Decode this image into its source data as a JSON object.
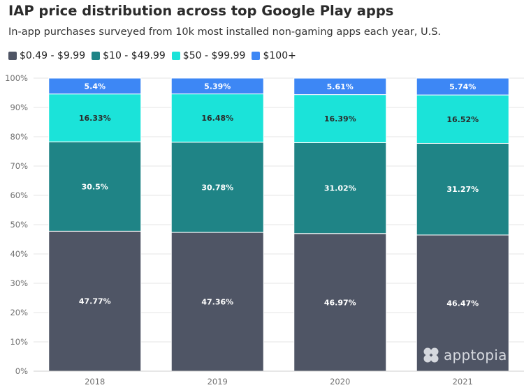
{
  "title": "IAP price distribution across top Google Play apps",
  "subtitle": "In-app purchases surveyed from 10k most installed non-gaming apps each year, U.S.",
  "watermark": "apptopia",
  "colors": {
    "series": [
      "#4f5565",
      "#1f8486",
      "#1be3d9",
      "#3d87f5"
    ],
    "label_text": "#ffffff",
    "label_text_dark": "#2b2b2b",
    "axis_text": "#707070",
    "grid": "#e4e4e4",
    "background": "#ffffff"
  },
  "chart_data": {
    "type": "bar",
    "stacked": true,
    "categories": [
      "2018",
      "2019",
      "2020",
      "2021"
    ],
    "series": [
      {
        "name": "$0.49 - $9.99",
        "values": [
          47.77,
          47.36,
          46.97,
          46.47
        ],
        "labels": [
          "47.77%",
          "47.36%",
          "46.97%",
          "46.47%"
        ]
      },
      {
        "name": "$10 - $49.99",
        "values": [
          30.5,
          30.78,
          31.02,
          31.27
        ],
        "labels": [
          "30.5%",
          "30.78%",
          "31.02%",
          "31.27%"
        ]
      },
      {
        "name": "$50 - $99.99",
        "values": [
          16.33,
          16.48,
          16.39,
          16.52
        ],
        "labels": [
          "16.33%",
          "16.48%",
          "16.39%",
          "16.52%"
        ]
      },
      {
        "name": "$100+",
        "values": [
          5.4,
          5.39,
          5.61,
          5.74
        ],
        "labels": [
          "5.4%",
          "5.39%",
          "5.61%",
          "5.74%"
        ]
      }
    ],
    "y_ticks": [
      "0%",
      "10%",
      "20%",
      "30%",
      "40%",
      "50%",
      "60%",
      "70%",
      "80%",
      "90%",
      "100%"
    ],
    "ylim": [
      0,
      100
    ],
    "xlabel": "",
    "ylabel": "",
    "grid": true,
    "legend_position": "top-left"
  }
}
